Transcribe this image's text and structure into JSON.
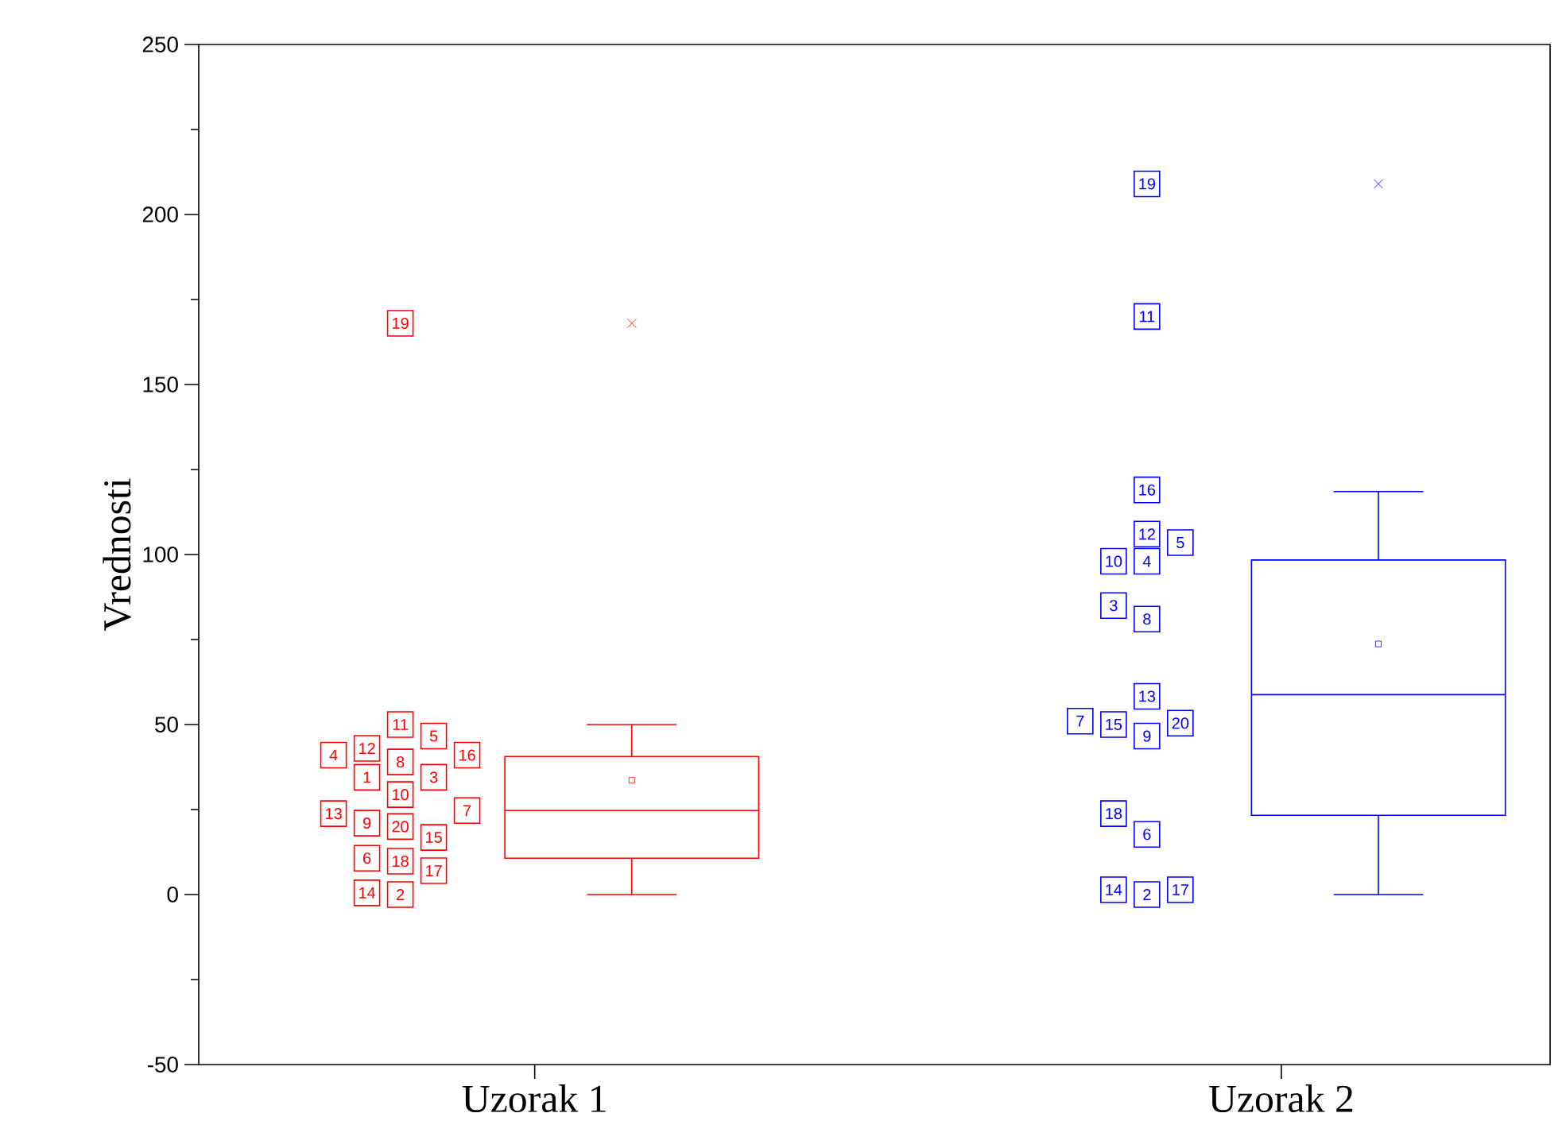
{
  "chart_data": {
    "type": "box",
    "ylabel": "Vrednosti",
    "categories": [
      "Uzorak 1",
      "Uzorak 2"
    ],
    "ylim": [
      -50,
      250
    ],
    "yticks": [
      -50,
      0,
      50,
      100,
      150,
      200,
      250
    ],
    "marker": "square",
    "series": [
      {
        "color": "#ff0000",
        "boxes": [
          {
            "low": 0,
            "q1": 10.7,
            "median": 24.7,
            "q3": 40.6,
            "high": 50,
            "mean": 33.6,
            "outliers": [
              168
            ]
          },
          null
        ]
      },
      {
        "color": "#0000ff",
        "boxes": [
          null,
          {
            "low": 0,
            "q1": 23.3,
            "median": 58.8,
            "q3": 98.4,
            "high": 118.5,
            "mean": 73.7,
            "outliers": [
              209
            ]
          }
        ]
      },
      {
        "type": "scatter",
        "color": "#ff0000",
        "x": [
          "Uzorak 1",
          "Uzorak 1",
          "Uzorak 1",
          "Uzorak 1",
          "Uzorak 1",
          "Uzorak 1",
          "Uzorak 1",
          "Uzorak 1",
          "Uzorak 1",
          "Uzorak 1",
          "Uzorak 1",
          "Uzorak 1",
          "Uzorak 1",
          "Uzorak 1",
          "Uzorak 1",
          "Uzorak 1",
          "Uzorak 1",
          "Uzorak 1",
          "Uzorak 1",
          "Uzorak 1"
        ],
        "values": [
          34.5,
          0,
          34.5,
          41,
          46.6,
          10.7,
          24.7,
          39,
          21,
          29.4,
          50,
          43,
          23.8,
          0.5,
          16.8,
          41,
          7,
          9.8,
          168,
          20
        ]
      },
      {
        "type": "scatter",
        "color": "#0000ff",
        "x": [
          "Uzorak 2",
          "Uzorak 2",
          "Uzorak 2",
          "Uzorak 2",
          "Uzorak 2",
          "Uzorak 2",
          "Uzorak 2",
          "Uzorak 2",
          "Uzorak 2",
          "Uzorak 2",
          "Uzorak 2",
          "Uzorak 2",
          "Uzorak 2",
          "Uzorak 2",
          "Uzorak 2",
          "Uzorak 2",
          "Uzorak 2",
          "Uzorak 2",
          "Uzorak 2"
        ],
        "values": [
          0,
          85,
          98,
          103.5,
          17.7,
          51,
          81,
          46.6,
          98,
          170,
          106,
          58.3,
          1.4,
          50,
          119,
          1.4,
          23.8,
          209,
          50.4
        ]
      }
    ],
    "annotations": [
      "1",
      "2",
      "3",
      "4",
      "5",
      "6",
      "7",
      "8",
      "9",
      "10",
      "11",
      "12",
      "13",
      "14",
      "15",
      "16",
      "17",
      "18",
      "19",
      "20",
      "2",
      "3",
      "4",
      "5",
      "6",
      "7",
      "8",
      "9",
      "10",
      "11",
      "12",
      "13",
      "14",
      "15",
      "16",
      "17",
      "18",
      "19",
      "20"
    ]
  }
}
